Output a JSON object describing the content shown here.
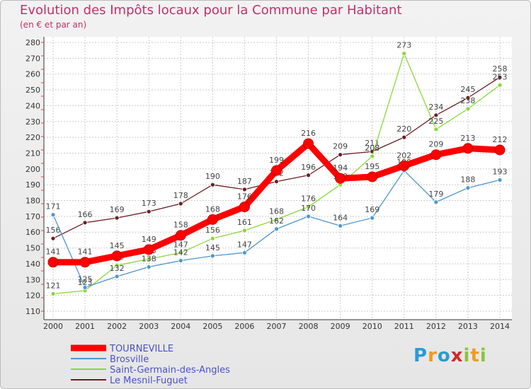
{
  "chart_data": {
    "type": "line",
    "title": "Evolution des Impôts locaux pour la Commune par Habitant",
    "subtitle": "(en € et par an)",
    "x": [
      "2000",
      "2001",
      "2002",
      "2003",
      "2004",
      "2005",
      "2006",
      "2007",
      "2008",
      "2009",
      "2010",
      "2011",
      "2012",
      "2013",
      "2014"
    ],
    "ylim": [
      110,
      280
    ],
    "yticks": [
      110,
      120,
      130,
      140,
      150,
      160,
      170,
      180,
      190,
      200,
      210,
      220,
      230,
      240,
      250,
      260,
      270,
      280
    ],
    "grid": true,
    "legend_position": "bottom-left",
    "series": [
      {
        "name": "TOURNEVILLE",
        "color": "#ff0000",
        "values": [
          141,
          141,
          145,
          149,
          158,
          168,
          176,
          199,
          216,
          194,
          195,
          202,
          209,
          213,
          212
        ]
      },
      {
        "name": "Brosville",
        "color": "#4f95cf",
        "values": [
          171,
          125,
          132,
          138,
          142,
          145,
          147,
          162,
          170,
          164,
          169,
          199,
          179,
          188,
          193
        ]
      },
      {
        "name": "Saint-Germain-des-Angles",
        "color": "#8bd63c",
        "values": [
          121,
          123,
          139,
          143,
          147,
          156,
          161,
          168,
          176,
          190,
          208,
          273,
          225,
          238,
          253
        ]
      },
      {
        "name": "Le Mesnil-Fuguet",
        "color": "#6b1e24",
        "values": [
          156,
          166,
          169,
          173,
          178,
          190,
          187,
          192,
          196,
          209,
          211,
          220,
          234,
          245,
          258
        ]
      }
    ]
  },
  "logo": {
    "letters": [
      "P",
      "r",
      "o",
      "x",
      "i",
      "t",
      "i"
    ],
    "colors": [
      "#2a9bd6",
      "#f29a1b",
      "#2a9bd6",
      "#d12a2a",
      "#8bc43f",
      "#f29a1b",
      "#8bc43f"
    ]
  }
}
